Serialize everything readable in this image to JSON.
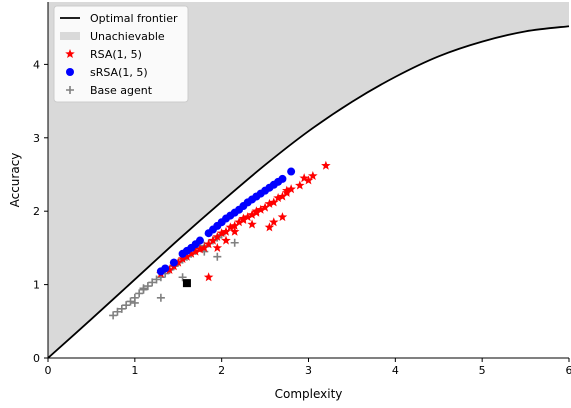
{
  "chart_data": {
    "type": "scatter",
    "title": "",
    "xlabel": "Complexity",
    "ylabel": "Accuracy",
    "xlim": [
      0,
      6
    ],
    "ylim": [
      0,
      4.85
    ],
    "xticks": [
      "0",
      "1",
      "2",
      "3",
      "4",
      "5",
      "6"
    ],
    "yticks": [
      "0",
      "1",
      "2",
      "3",
      "4"
    ],
    "grid": false,
    "legend_position": "top-left",
    "legend": [
      {
        "label": "Optimal frontier",
        "marker": "line",
        "color": "#000000"
      },
      {
        "label": "Unachievable",
        "marker": "patch",
        "color": "#d9d9d9"
      },
      {
        "label": "RSA(1, 5)",
        "marker": "star",
        "color": "#ff0000"
      },
      {
        "label": "sRSA(1, 5)",
        "marker": "circle",
        "color": "#0000ff"
      },
      {
        "label": "Base agent",
        "marker": "plus",
        "color": "#808080"
      }
    ],
    "frontier": {
      "name": "Optimal frontier",
      "x": [
        0,
        0.5,
        1.0,
        1.5,
        2.0,
        2.5,
        3.0,
        3.5,
        4.0,
        4.5,
        5.0,
        5.5,
        6.0
      ],
      "y": [
        0,
        0.53,
        1.07,
        1.61,
        2.13,
        2.63,
        3.09,
        3.49,
        3.83,
        4.11,
        4.31,
        4.45,
        4.52
      ]
    },
    "series": [
      {
        "name": "Base agent",
        "marker": "plus",
        "color": "#808080",
        "x": [
          0.75,
          0.8,
          0.85,
          0.9,
          0.95,
          1.0,
          1.05,
          1.1,
          1.15,
          1.2,
          1.25,
          1.3,
          1.35,
          1.4,
          1.45,
          1.5,
          1.55,
          1.6,
          1.65,
          1.7,
          1.75,
          1.8,
          1.85,
          1.9,
          1.95,
          2.0,
          1.3,
          1.55,
          1.8,
          1.95,
          2.15,
          1.1,
          1.0,
          1.45
        ],
        "y": [
          0.58,
          0.63,
          0.67,
          0.72,
          0.77,
          0.82,
          0.88,
          0.93,
          0.98,
          1.03,
          1.07,
          1.1,
          1.15,
          1.2,
          1.25,
          1.3,
          1.34,
          1.38,
          1.42,
          1.46,
          1.5,
          1.53,
          1.56,
          1.6,
          1.64,
          1.68,
          0.82,
          1.1,
          1.45,
          1.38,
          1.57,
          0.95,
          0.75,
          1.3
        ]
      },
      {
        "name": "RSA(1, 5)",
        "marker": "star",
        "color": "#ff0000",
        "x": [
          1.3,
          1.4,
          1.45,
          1.5,
          1.55,
          1.6,
          1.65,
          1.7,
          1.75,
          1.8,
          1.85,
          1.9,
          1.95,
          2.0,
          2.05,
          2.1,
          2.15,
          2.2,
          2.25,
          2.3,
          2.35,
          2.4,
          2.45,
          2.5,
          2.55,
          2.6,
          2.65,
          2.7,
          2.75,
          2.8,
          2.9,
          3.0,
          3.05,
          3.2,
          1.85,
          2.05,
          2.15,
          2.25,
          2.4,
          2.6,
          2.75,
          2.95,
          2.55,
          2.7,
          1.95,
          2.35
        ],
        "y": [
          1.15,
          1.2,
          1.25,
          1.3,
          1.35,
          1.38,
          1.42,
          1.45,
          1.48,
          1.5,
          1.55,
          1.6,
          1.65,
          1.7,
          1.72,
          1.78,
          1.8,
          1.85,
          1.88,
          1.92,
          1.95,
          2.0,
          2.02,
          2.05,
          2.1,
          2.12,
          2.18,
          2.2,
          2.25,
          2.3,
          2.35,
          2.42,
          2.48,
          2.62,
          1.1,
          1.6,
          1.72,
          1.9,
          1.98,
          1.85,
          2.28,
          2.45,
          1.78,
          1.92,
          1.5,
          1.82
        ]
      },
      {
        "name": "sRSA(1, 5)",
        "marker": "circle",
        "color": "#0000ff",
        "x": [
          1.3,
          1.35,
          1.45,
          1.55,
          1.6,
          1.65,
          1.7,
          1.75,
          1.85,
          1.9,
          1.95,
          2.0,
          2.05,
          2.1,
          2.15,
          2.2,
          2.25,
          2.3,
          2.35,
          2.4,
          2.45,
          2.5,
          2.55,
          2.6,
          2.65,
          2.7,
          2.8
        ],
        "y": [
          1.18,
          1.22,
          1.3,
          1.42,
          1.46,
          1.5,
          1.55,
          1.6,
          1.7,
          1.75,
          1.8,
          1.85,
          1.9,
          1.94,
          1.98,
          2.02,
          2.07,
          2.12,
          2.16,
          2.2,
          2.24,
          2.28,
          2.32,
          2.36,
          2.4,
          2.44,
          2.54
        ]
      },
      {
        "name": "",
        "marker": "square",
        "color": "#000000",
        "x": [
          1.6
        ],
        "y": [
          1.02
        ]
      }
    ]
  }
}
